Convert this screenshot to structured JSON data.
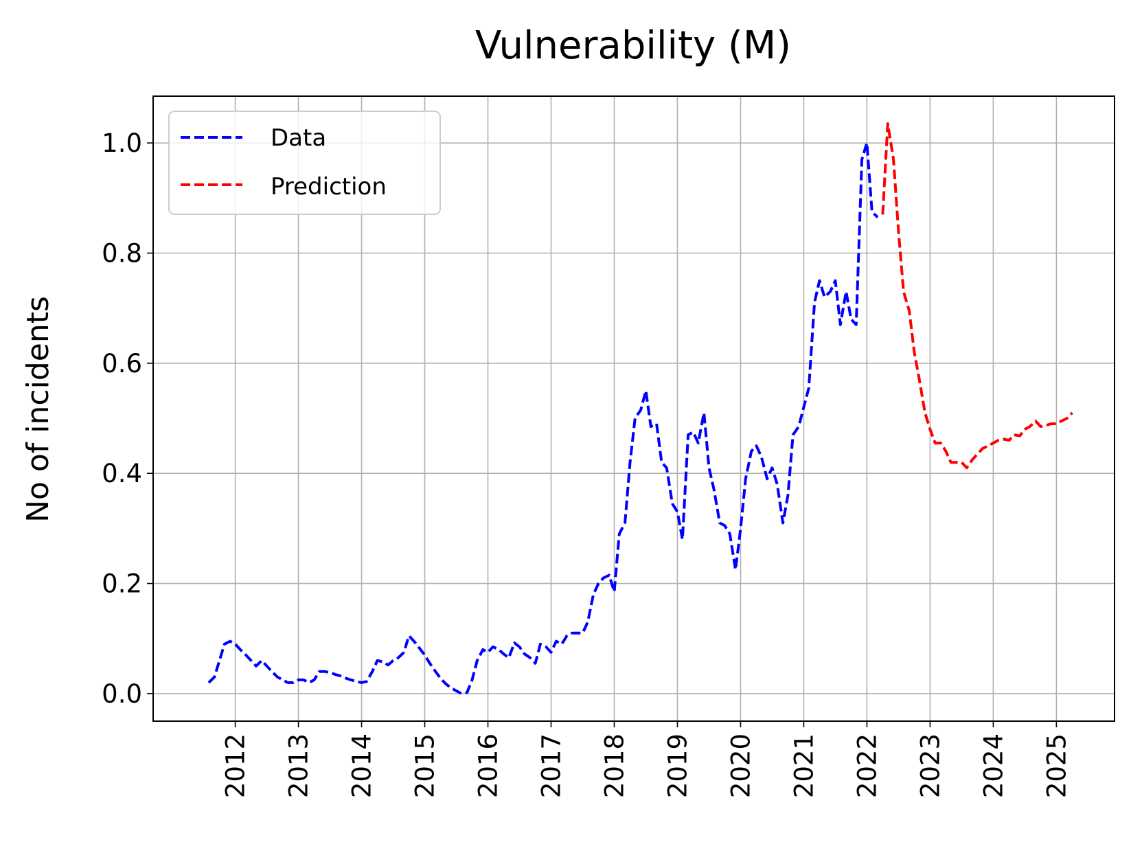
{
  "chart_data": {
    "type": "line",
    "title": "Vulnerability (M)",
    "xlabel": "",
    "ylabel": "No of incidents",
    "xlim": [
      2010.7,
      2025.92
    ],
    "ylim": [
      -0.05,
      1.085
    ],
    "x_ticks": [
      2012,
      2013,
      2014,
      2015,
      2016,
      2017,
      2018,
      2019,
      2020,
      2021,
      2022,
      2023,
      2024,
      2025
    ],
    "x_tick_labels": [
      "2012",
      "2013",
      "2014",
      "2015",
      "2016",
      "2017",
      "2018",
      "2019",
      "2020",
      "2021",
      "2022",
      "2023",
      "2024",
      "2025"
    ],
    "y_ticks": [
      0.0,
      0.2,
      0.4,
      0.6,
      0.8,
      1.0
    ],
    "y_tick_labels": [
      "0.0",
      "0.2",
      "0.4",
      "0.6",
      "0.8",
      "1.0"
    ],
    "grid": true,
    "legend_position": "top-left",
    "series": [
      {
        "name": "Data",
        "color": "#0000ff",
        "line_style": "dashed",
        "points": [
          [
            2011.58,
            0.02
          ],
          [
            2011.67,
            0.03
          ],
          [
            2011.75,
            0.06
          ],
          [
            2011.83,
            0.09
          ],
          [
            2011.92,
            0.095
          ],
          [
            2012.0,
            0.09
          ],
          [
            2012.08,
            0.08
          ],
          [
            2012.17,
            0.07
          ],
          [
            2012.25,
            0.06
          ],
          [
            2012.33,
            0.05
          ],
          [
            2012.42,
            0.06
          ],
          [
            2012.5,
            0.05
          ],
          [
            2012.58,
            0.04
          ],
          [
            2012.67,
            0.03
          ],
          [
            2012.75,
            0.025
          ],
          [
            2012.83,
            0.02
          ],
          [
            2012.92,
            0.02
          ],
          [
            2013.0,
            0.025
          ],
          [
            2013.08,
            0.025
          ],
          [
            2013.17,
            0.02
          ],
          [
            2013.25,
            0.025
          ],
          [
            2013.33,
            0.04
          ],
          [
            2013.42,
            0.04
          ],
          [
            2013.5,
            0.038
          ],
          [
            2013.58,
            0.035
          ],
          [
            2013.67,
            0.032
          ],
          [
            2013.75,
            0.028
          ],
          [
            2013.83,
            0.025
          ],
          [
            2013.92,
            0.022
          ],
          [
            2014.0,
            0.02
          ],
          [
            2014.08,
            0.022
          ],
          [
            2014.17,
            0.04
          ],
          [
            2014.25,
            0.06
          ],
          [
            2014.33,
            0.058
          ],
          [
            2014.42,
            0.052
          ],
          [
            2014.5,
            0.06
          ],
          [
            2014.58,
            0.065
          ],
          [
            2014.67,
            0.075
          ],
          [
            2014.75,
            0.105
          ],
          [
            2014.83,
            0.095
          ],
          [
            2014.92,
            0.082
          ],
          [
            2015.0,
            0.07
          ],
          [
            2015.08,
            0.055
          ],
          [
            2015.17,
            0.04
          ],
          [
            2015.25,
            0.028
          ],
          [
            2015.33,
            0.018
          ],
          [
            2015.42,
            0.01
          ],
          [
            2015.5,
            0.005
          ],
          [
            2015.58,
            0.0
          ],
          [
            2015.67,
            0.002
          ],
          [
            2015.75,
            0.025
          ],
          [
            2015.83,
            0.06
          ],
          [
            2015.92,
            0.08
          ],
          [
            2016.0,
            0.075
          ],
          [
            2016.08,
            0.085
          ],
          [
            2016.17,
            0.08
          ],
          [
            2016.25,
            0.072
          ],
          [
            2016.33,
            0.065
          ],
          [
            2016.42,
            0.092
          ],
          [
            2016.5,
            0.085
          ],
          [
            2016.58,
            0.072
          ],
          [
            2016.67,
            0.065
          ],
          [
            2016.75,
            0.055
          ],
          [
            2016.83,
            0.09
          ],
          [
            2016.92,
            0.085
          ],
          [
            2017.0,
            0.075
          ],
          [
            2017.08,
            0.095
          ],
          [
            2017.17,
            0.09
          ],
          [
            2017.25,
            0.105
          ],
          [
            2017.33,
            0.11
          ],
          [
            2017.42,
            0.11
          ],
          [
            2017.5,
            0.11
          ],
          [
            2017.58,
            0.13
          ],
          [
            2017.67,
            0.18
          ],
          [
            2017.75,
            0.2
          ],
          [
            2017.83,
            0.21
          ],
          [
            2017.92,
            0.215
          ],
          [
            2018.0,
            0.185
          ],
          [
            2018.08,
            0.29
          ],
          [
            2018.17,
            0.31
          ],
          [
            2018.25,
            0.42
          ],
          [
            2018.33,
            0.5
          ],
          [
            2018.42,
            0.515
          ],
          [
            2018.5,
            0.55
          ],
          [
            2018.58,
            0.485
          ],
          [
            2018.67,
            0.49
          ],
          [
            2018.75,
            0.42
          ],
          [
            2018.83,
            0.41
          ],
          [
            2018.92,
            0.345
          ],
          [
            2019.0,
            0.33
          ],
          [
            2019.08,
            0.28
          ],
          [
            2019.17,
            0.47
          ],
          [
            2019.25,
            0.475
          ],
          [
            2019.33,
            0.455
          ],
          [
            2019.42,
            0.51
          ],
          [
            2019.5,
            0.41
          ],
          [
            2019.58,
            0.37
          ],
          [
            2019.67,
            0.31
          ],
          [
            2019.75,
            0.305
          ],
          [
            2019.83,
            0.29
          ],
          [
            2019.92,
            0.225
          ],
          [
            2020.0,
            0.3
          ],
          [
            2020.08,
            0.39
          ],
          [
            2020.17,
            0.44
          ],
          [
            2020.25,
            0.45
          ],
          [
            2020.33,
            0.43
          ],
          [
            2020.42,
            0.39
          ],
          [
            2020.5,
            0.41
          ],
          [
            2020.58,
            0.38
          ],
          [
            2020.67,
            0.31
          ],
          [
            2020.75,
            0.36
          ],
          [
            2020.83,
            0.47
          ],
          [
            2020.92,
            0.485
          ],
          [
            2021.0,
            0.52
          ],
          [
            2021.08,
            0.555
          ],
          [
            2021.17,
            0.71
          ],
          [
            2021.25,
            0.75
          ],
          [
            2021.33,
            0.72
          ],
          [
            2021.42,
            0.73
          ],
          [
            2021.5,
            0.75
          ],
          [
            2021.58,
            0.67
          ],
          [
            2021.67,
            0.73
          ],
          [
            2021.75,
            0.68
          ],
          [
            2021.83,
            0.67
          ],
          [
            2021.92,
            0.97
          ],
          [
            2022.0,
            1.0
          ],
          [
            2022.08,
            0.875
          ],
          [
            2022.17,
            0.865
          ]
        ]
      },
      {
        "name": "Prediction",
        "color": "#ff0000",
        "line_style": "dashed",
        "points": [
          [
            2022.25,
            0.87
          ],
          [
            2022.33,
            1.035
          ],
          [
            2022.42,
            0.97
          ],
          [
            2022.5,
            0.84
          ],
          [
            2022.58,
            0.73
          ],
          [
            2022.67,
            0.695
          ],
          [
            2022.75,
            0.62
          ],
          [
            2022.83,
            0.57
          ],
          [
            2022.92,
            0.51
          ],
          [
            2023.0,
            0.48
          ],
          [
            2023.08,
            0.455
          ],
          [
            2023.17,
            0.455
          ],
          [
            2023.25,
            0.44
          ],
          [
            2023.33,
            0.42
          ],
          [
            2023.42,
            0.42
          ],
          [
            2023.5,
            0.42
          ],
          [
            2023.58,
            0.41
          ],
          [
            2023.67,
            0.425
          ],
          [
            2023.75,
            0.435
          ],
          [
            2023.83,
            0.445
          ],
          [
            2023.92,
            0.45
          ],
          [
            2024.0,
            0.455
          ],
          [
            2024.08,
            0.46
          ],
          [
            2024.17,
            0.462
          ],
          [
            2024.25,
            0.46
          ],
          [
            2024.33,
            0.47
          ],
          [
            2024.42,
            0.468
          ],
          [
            2024.5,
            0.48
          ],
          [
            2024.58,
            0.485
          ],
          [
            2024.67,
            0.495
          ],
          [
            2024.75,
            0.485
          ],
          [
            2024.83,
            0.487
          ],
          [
            2024.92,
            0.49
          ],
          [
            2025.0,
            0.49
          ],
          [
            2025.08,
            0.495
          ],
          [
            2025.17,
            0.5
          ],
          [
            2025.25,
            0.51
          ]
        ]
      }
    ]
  }
}
